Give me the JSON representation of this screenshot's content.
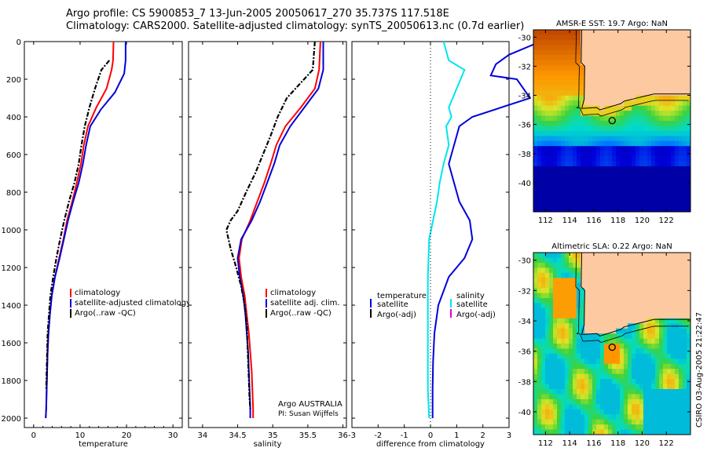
{
  "header": {
    "line1": "Argo profile: CS 5900853_7 13-Jun-2005 20050617_270 35.737S 117.518E",
    "line2": "Climatology: CARS2000. Satellite-adjusted climatology: synTS_20050613.nc (0.7d earlier)"
  },
  "colors": {
    "climatology": "#ff0000",
    "satellite": "#0000dd",
    "argo": "#000000",
    "salinity": "#00e5ee",
    "argo_adj": "#dd00dd",
    "land": "#fdc9a1"
  },
  "chart_data": [
    {
      "type": "line",
      "id": "temperature",
      "xlabel": "temperature",
      "xlim": [
        -2,
        32
      ],
      "ylim": [
        2050,
        0
      ],
      "xticks": [
        0,
        10,
        20,
        30
      ],
      "yticks": [
        0,
        200,
        400,
        600,
        800,
        1000,
        1200,
        1400,
        1600,
        1800,
        2000
      ],
      "legend": {
        "position": "center-right",
        "entries": [
          "climatology",
          "satellite-adjusted climatology",
          "Argo(..raw -QC)"
        ]
      },
      "series": [
        {
          "name": "climatology",
          "style": "solid",
          "x": [
            17.2,
            17.1,
            16.8,
            15.7,
            13.5,
            11.7,
            10.8,
            10.2,
            9.3,
            8.3,
            7.2,
            6.4,
            5.5,
            4.6,
            3.9,
            3.5,
            3.2,
            3.0,
            2.9,
            2.8,
            2.7,
            2.6
          ],
          "y": [
            0,
            100,
            150,
            250,
            350,
            450,
            550,
            650,
            750,
            850,
            950,
            1050,
            1150,
            1250,
            1350,
            1450,
            1550,
            1650,
            1750,
            1850,
            1950,
            2000
          ]
        },
        {
          "name": "satellite-adjusted climatology",
          "style": "solid",
          "x": [
            19.8,
            19.8,
            19.5,
            17.5,
            14.5,
            12.2,
            11.3,
            10.6,
            9.7,
            8.5,
            7.4,
            6.5,
            5.6,
            4.6,
            3.9,
            3.5,
            3.2,
            3.0,
            2.9,
            2.8,
            2.7,
            2.6
          ],
          "y": [
            0,
            100,
            170,
            270,
            360,
            450,
            550,
            650,
            750,
            850,
            950,
            1050,
            1150,
            1250,
            1350,
            1450,
            1550,
            1650,
            1750,
            1850,
            1950,
            2000
          ]
        },
        {
          "name": "Argo(..raw -QC)",
          "style": "dashdot",
          "x": [
            16.3,
            14.6,
            13.2,
            12.0,
            11.0,
            10.3,
            9.7,
            8.8,
            7.6,
            6.6,
            5.7,
            4.9,
            4.2,
            3.6,
            3.3,
            3.0,
            2.9,
            2.8,
            2.7
          ],
          "y": [
            100,
            150,
            250,
            350,
            450,
            550,
            650,
            750,
            850,
            950,
            1050,
            1150,
            1250,
            1350,
            1450,
            1550,
            1650,
            1750,
            1850
          ]
        }
      ]
    },
    {
      "type": "line",
      "id": "salinity",
      "xlabel": "salinity",
      "xlim": [
        33.8,
        36.05
      ],
      "ylim": [
        2050,
        0
      ],
      "xticks": [
        34,
        34.5,
        35,
        35.5,
        36
      ],
      "legend": {
        "position": "center-right",
        "entries": [
          "climatology",
          "satellite adj. clim.",
          "Argo(..raw -QC)"
        ]
      },
      "annotations": [
        "Argo AUSTRALIA",
        "PI: Susan Wijffels"
      ],
      "series": [
        {
          "name": "climatology",
          "style": "solid",
          "x": [
            35.68,
            35.66,
            35.6,
            35.4,
            35.18,
            35.05,
            34.97,
            34.88,
            34.78,
            34.68,
            34.56,
            34.52,
            34.55,
            34.6,
            34.63,
            34.66,
            34.68,
            34.7,
            34.71,
            34.72,
            34.72
          ],
          "y": [
            0,
            150,
            250,
            350,
            450,
            550,
            650,
            750,
            850,
            950,
            1050,
            1150,
            1250,
            1350,
            1450,
            1550,
            1650,
            1750,
            1850,
            1950,
            2000
          ]
        },
        {
          "name": "satellite adj. clim.",
          "style": "solid",
          "x": [
            35.72,
            35.72,
            35.65,
            35.45,
            35.25,
            35.1,
            35.02,
            34.92,
            34.82,
            34.7,
            34.55,
            34.5,
            34.53,
            34.58,
            34.61,
            34.63,
            34.65,
            34.66,
            34.67,
            34.68,
            34.68
          ],
          "y": [
            0,
            150,
            250,
            350,
            450,
            550,
            650,
            750,
            850,
            950,
            1050,
            1150,
            1250,
            1350,
            1450,
            1550,
            1650,
            1750,
            1850,
            1950,
            2000
          ]
        },
        {
          "name": "Argo(..raw -QC)",
          "style": "dashdot",
          "x": [
            35.6,
            35.57,
            35.2,
            35.07,
            34.97,
            34.86,
            34.75,
            34.62,
            34.5,
            34.4,
            34.34,
            34.4,
            34.48,
            34.55,
            34.6,
            34.63,
            34.64,
            34.65,
            34.66,
            34.67,
            34.68
          ],
          "y": [
            0,
            150,
            300,
            400,
            500,
            600,
            700,
            800,
            900,
            950,
            1000,
            1100,
            1200,
            1300,
            1400,
            1500,
            1600,
            1700,
            1800,
            1900,
            1950
          ]
        }
      ]
    },
    {
      "type": "line",
      "id": "difference",
      "xlabel": "difference from climatology",
      "xlim": [
        -3,
        3
      ],
      "ylim": [
        2050,
        0
      ],
      "xticks": [
        -3,
        -2,
        -1,
        0,
        1,
        2,
        3
      ],
      "legend": {
        "position": "center",
        "entries": [
          "temperature",
          "satellite",
          "Argo(-adj)",
          "salinity",
          "satellite",
          "Argo(-adj)"
        ]
      },
      "series": [
        {
          "name": "satellite",
          "group": "temperature",
          "style": "solid",
          "x": [
            4.2,
            3.0,
            2.5,
            2.3,
            3.3,
            3.8,
            1.6,
            1.1,
            0.9,
            0.7,
            0.9,
            1.1,
            1.5,
            1.6,
            1.3,
            0.7,
            0.3,
            0.15,
            0.1,
            0.08,
            0.08
          ],
          "y": [
            0,
            70,
            120,
            180,
            200,
            300,
            400,
            450,
            550,
            650,
            750,
            850,
            950,
            1050,
            1150,
            1250,
            1400,
            1550,
            1700,
            1850,
            2000
          ]
        },
        {
          "name": "satellite",
          "group": "salinity",
          "style": "solid",
          "x": [
            0.5,
            0.7,
            1.3,
            1.0,
            0.7,
            0.8,
            0.6,
            0.7,
            0.5,
            0.35,
            0.25,
            0.1,
            -0.05,
            -0.1,
            -0.1,
            -0.1,
            -0.1,
            -0.05
          ],
          "y": [
            0,
            100,
            150,
            250,
            350,
            400,
            450,
            550,
            650,
            750,
            850,
            950,
            1050,
            1250,
            1450,
            1650,
            1850,
            2000
          ]
        }
      ]
    },
    {
      "type": "heatmap",
      "id": "sst_map",
      "title": "AMSR-E SST: 19.7 Argo: NaN",
      "xlim": [
        111,
        124
      ],
      "ylim": [
        -42,
        -29.5
      ],
      "xticks": [
        112,
        114,
        116,
        118,
        120,
        122
      ],
      "yticks": [
        -30,
        -32,
        -34,
        -36,
        -38,
        -40
      ],
      "marker": {
        "lon": 117.518,
        "lat": -35.737
      }
    },
    {
      "type": "heatmap",
      "id": "sla_map",
      "title": "Altimetric SLA: 0.22 Argo: NaN",
      "xlim": [
        111,
        124
      ],
      "ylim": [
        -41.5,
        -29.5
      ],
      "xticks": [
        112,
        114,
        116,
        118,
        120,
        122
      ],
      "yticks": [
        -30,
        -32,
        -34,
        -36,
        -38,
        -40
      ],
      "marker": {
        "lon": 117.518,
        "lat": -35.737
      }
    }
  ],
  "credit": "CSIRO 03-Aug-2005 21:22:47"
}
